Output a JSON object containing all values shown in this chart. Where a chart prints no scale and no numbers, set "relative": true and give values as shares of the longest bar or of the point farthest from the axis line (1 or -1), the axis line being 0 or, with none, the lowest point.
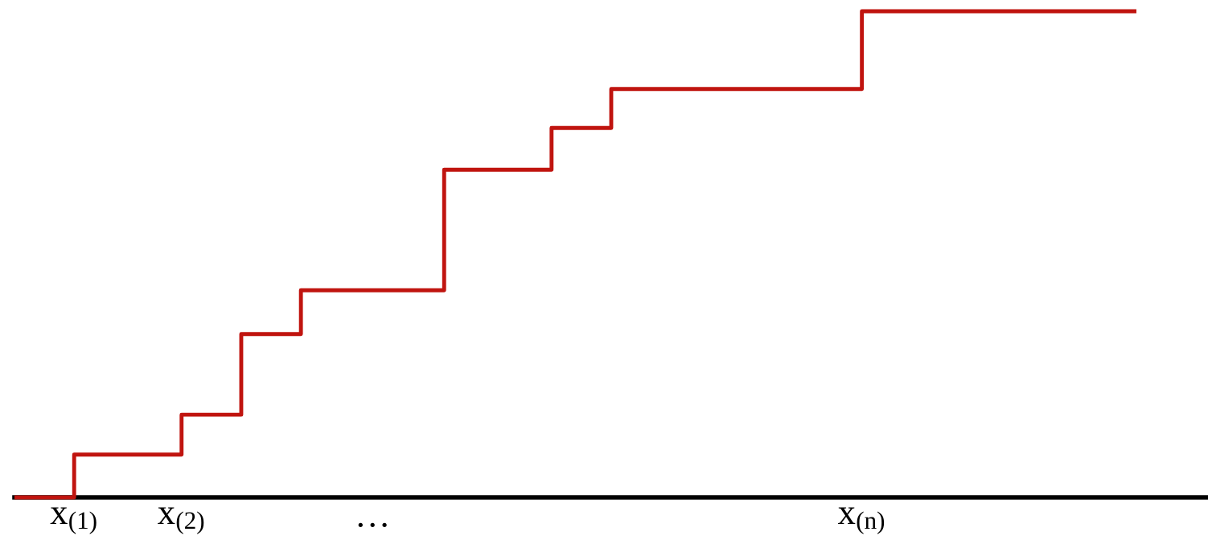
{
  "chart_data": {
    "type": "step",
    "relative": true,
    "color": "#c0140f",
    "categories": [
      null,
      null,
      null,
      null,
      null,
      "x$_{(1)}$",
      null,
      null,
      null,
      null,
      null,
      null,
      null,
      null,
      "x$_{(2)}$",
      null,
      null,
      null,
      null,
      null,
      null,
      null,
      null,
      null,
      null,
      null,
      null,
      null,
      null,
      null,
      "…",
      null,
      null,
      null,
      null,
      null,
      null,
      null,
      null,
      null,
      null,
      null,
      null,
      null,
      null,
      null,
      null,
      null,
      null,
      null,
      null,
      null,
      null,
      null,
      null,
      null,
      null,
      null,
      null,
      null,
      null,
      null,
      null,
      null,
      null,
      null,
      null,
      null,
      null,
      null,
      null,
      "x$_{(n)}$",
      null,
      null,
      null,
      null,
      null,
      null,
      null,
      null,
      null,
      null,
      null,
      null,
      null,
      null,
      null,
      null,
      null,
      null,
      null,
      null,
      null,
      null,
      null,
      null,
      null,
      null,
      null,
      null,
      null
    ],
    "values": [
      0,
      0,
      0,
      0,
      0,
      0.088,
      0.088,
      0.088,
      0.088,
      0.088,
      0.088,
      0.088,
      0.088,
      0.088,
      0.17,
      0.17,
      0.17,
      0.17,
      0.17,
      0.336,
      0.336,
      0.336,
      0.336,
      0.336,
      0.426,
      0.426,
      0.426,
      0.426,
      0.426,
      0.426,
      0.426,
      0.426,
      0.426,
      0.426,
      0.426,
      0.426,
      0.674,
      0.674,
      0.674,
      0.674,
      0.674,
      0.674,
      0.674,
      0.674,
      0.674,
      0.76,
      0.76,
      0.76,
      0.76,
      0.76,
      0.84,
      0.84,
      0.84,
      0.84,
      0.84,
      0.84,
      0.84,
      0.84,
      0.84,
      0.84,
      0.84,
      0.84,
      0.84,
      0.84,
      0.84,
      0.84,
      0.84,
      0.84,
      0.84,
      0.84,
      0.84,
      1,
      1,
      1,
      1,
      1,
      1,
      1,
      1,
      1,
      1,
      1,
      1,
      1,
      1,
      1,
      1,
      1,
      1,
      1,
      1,
      1,
      1,
      1,
      1,
      null,
      null,
      null,
      null,
      null,
      null
    ],
    "grid": false,
    "legend": false
  }
}
